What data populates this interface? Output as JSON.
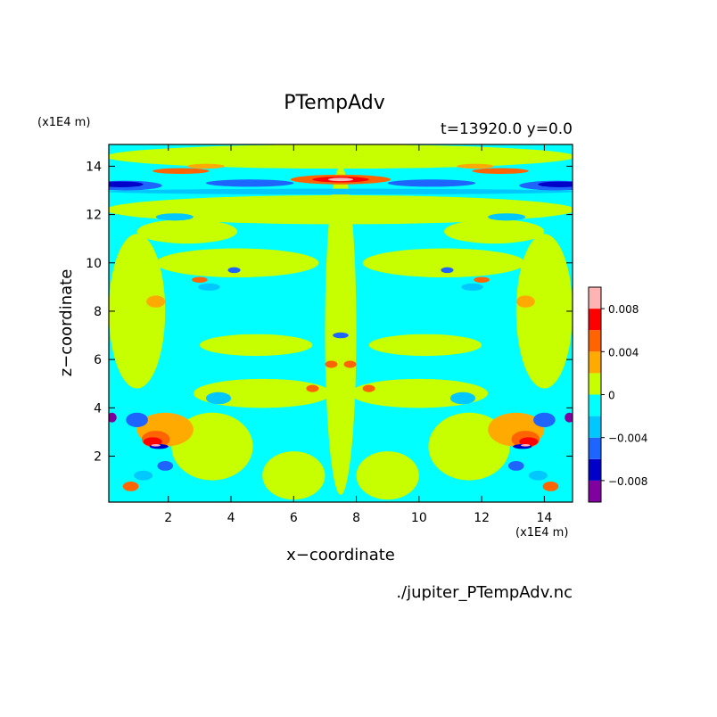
{
  "chart_data": {
    "type": "heatmap",
    "title": "PTempAdv",
    "subtitle": "t=13920.0 y=0.0",
    "xlabel": "x−coordinate",
    "ylabel": "z−coordinate",
    "x_unit": "(x1E4 m)",
    "y_unit": "(x1E4 m)",
    "source_file": "./jupiter_PTempAdv.nc",
    "xlim": [
      0.1,
      14.9
    ],
    "ylim": [
      0.1,
      14.9
    ],
    "x_ticks": [
      2,
      4,
      6,
      8,
      10,
      12,
      14
    ],
    "y_ticks": [
      2,
      4,
      6,
      8,
      10,
      12,
      14
    ],
    "x_tick_labels": [
      "2",
      "4",
      "6",
      "8",
      "10",
      "12",
      "14"
    ],
    "y_tick_labels": [
      "2",
      "4",
      "6",
      "8",
      "10",
      "12",
      "14"
    ],
    "colorbar": {
      "levels": [
        -0.01,
        -0.008,
        -0.006,
        -0.004,
        -0.002,
        0,
        0.002,
        0.004,
        0.006,
        0.008,
        0.01
      ],
      "colors": [
        "#8000a0",
        "#0000c8",
        "#1e64ff",
        "#00c8ff",
        "#00ffff",
        "#c8ff00",
        "#ffaa00",
        "#ff6400",
        "#ff0000",
        "#ffb4b4"
      ],
      "tick_values": [
        -0.008,
        -0.004,
        0,
        0.004,
        0.008
      ],
      "tick_labels": [
        "−0.008",
        "−0.004",
        "0",
        "0.004",
        "0.008"
      ]
    },
    "field": {
      "background_level": "#00ffff",
      "features": [
        {
          "level": 0.001,
          "x": 7.5,
          "z": 7.2,
          "rx": 0.5,
          "rz": 6.8
        },
        {
          "level": 0.001,
          "x": 7.5,
          "z": 14.4,
          "rx": 7.5,
          "rz": 0.5
        },
        {
          "level": 0.001,
          "x": 7.5,
          "z": 12.2,
          "rx": 7.5,
          "rz": 0.6
        },
        {
          "level": 0.001,
          "x": 4.2,
          "z": 10.0,
          "rx": 2.6,
          "rz": 0.6
        },
        {
          "level": 0.001,
          "x": 10.8,
          "z": 10.0,
          "rx": 2.6,
          "rz": 0.6
        },
        {
          "level": 0.001,
          "x": 4.8,
          "z": 6.6,
          "rx": 1.8,
          "rz": 0.45
        },
        {
          "level": 0.001,
          "x": 10.2,
          "z": 6.6,
          "rx": 1.8,
          "rz": 0.45
        },
        {
          "level": 0.001,
          "x": 5.0,
          "z": 4.6,
          "rx": 2.2,
          "rz": 0.6
        },
        {
          "level": 0.001,
          "x": 10.0,
          "z": 4.6,
          "rx": 2.2,
          "rz": 0.6
        },
        {
          "level": 0.001,
          "x": 1.0,
          "z": 8.0,
          "rx": 0.9,
          "rz": 3.2
        },
        {
          "level": 0.001,
          "x": 14.0,
          "z": 8.0,
          "rx": 0.9,
          "rz": 3.2
        },
        {
          "level": 0.001,
          "x": 3.4,
          "z": 2.4,
          "rx": 1.3,
          "rz": 1.4
        },
        {
          "level": 0.001,
          "x": 11.6,
          "z": 2.4,
          "rx": 1.3,
          "rz": 1.4
        },
        {
          "level": 0.001,
          "x": 6.0,
          "z": 1.2,
          "rx": 1.0,
          "rz": 1.0
        },
        {
          "level": 0.001,
          "x": 9.0,
          "z": 1.2,
          "rx": 1.0,
          "rz": 1.0
        },
        {
          "level": 0.001,
          "x": 2.6,
          "z": 11.3,
          "rx": 1.6,
          "rz": 0.5
        },
        {
          "level": 0.001,
          "x": 12.4,
          "z": 11.3,
          "rx": 1.6,
          "rz": 0.5
        },
        {
          "level": -0.003,
          "x": 7.5,
          "z": 12.95,
          "rx": 7.5,
          "rz": 0.12
        },
        {
          "level": -0.005,
          "x": 0.6,
          "z": 13.2,
          "rx": 1.2,
          "rz": 0.2
        },
        {
          "level": -0.005,
          "x": 14.4,
          "z": 13.2,
          "rx": 1.2,
          "rz": 0.2
        },
        {
          "level": -0.007,
          "x": 0.5,
          "z": 13.25,
          "rx": 0.7,
          "rz": 0.12
        },
        {
          "level": -0.007,
          "x": 14.5,
          "z": 13.25,
          "rx": 0.7,
          "rz": 0.12
        },
        {
          "level": -0.005,
          "x": 4.6,
          "z": 13.3,
          "rx": 1.4,
          "rz": 0.15
        },
        {
          "level": -0.005,
          "x": 10.4,
          "z": 13.3,
          "rx": 1.4,
          "rz": 0.15
        },
        {
          "level": 0.005,
          "x": 7.5,
          "z": 13.45,
          "rx": 1.6,
          "rz": 0.2
        },
        {
          "level": 0.007,
          "x": 7.5,
          "z": 13.45,
          "rx": 0.9,
          "rz": 0.12
        },
        {
          "level": 0.009,
          "x": 7.5,
          "z": 13.45,
          "rx": 0.4,
          "rz": 0.07
        },
        {
          "level": 0.005,
          "x": 2.4,
          "z": 13.8,
          "rx": 0.9,
          "rz": 0.12
        },
        {
          "level": 0.005,
          "x": 12.6,
          "z": 13.8,
          "rx": 0.9,
          "rz": 0.12
        },
        {
          "level": 0.003,
          "x": 3.2,
          "z": 14.0,
          "rx": 0.6,
          "rz": 0.1
        },
        {
          "level": 0.003,
          "x": 11.8,
          "z": 14.0,
          "rx": 0.6,
          "rz": 0.1
        },
        {
          "level": -0.003,
          "x": 3.3,
          "z": 9.0,
          "rx": 0.35,
          "rz": 0.15
        },
        {
          "level": -0.003,
          "x": 11.7,
          "z": 9.0,
          "rx": 0.35,
          "rz": 0.15
        },
        {
          "level": 0.005,
          "x": 3.0,
          "z": 9.3,
          "rx": 0.25,
          "rz": 0.12
        },
        {
          "level": 0.005,
          "x": 12.0,
          "z": 9.3,
          "rx": 0.25,
          "rz": 0.12
        },
        {
          "level": 0.003,
          "x": 1.6,
          "z": 8.4,
          "rx": 0.3,
          "rz": 0.25
        },
        {
          "level": 0.003,
          "x": 13.4,
          "z": 8.4,
          "rx": 0.3,
          "rz": 0.25
        },
        {
          "level": -0.005,
          "x": 4.1,
          "z": 9.7,
          "rx": 0.2,
          "rz": 0.12
        },
        {
          "level": -0.005,
          "x": 10.9,
          "z": 9.7,
          "rx": 0.2,
          "rz": 0.12
        },
        {
          "level": 0.005,
          "x": 7.2,
          "z": 5.8,
          "rx": 0.2,
          "rz": 0.15
        },
        {
          "level": 0.005,
          "x": 7.8,
          "z": 5.8,
          "rx": 0.2,
          "rz": 0.15
        },
        {
          "level": -0.005,
          "x": 7.5,
          "z": 7.0,
          "rx": 0.25,
          "rz": 0.12
        },
        {
          "level": 0.005,
          "x": 6.6,
          "z": 4.8,
          "rx": 0.2,
          "rz": 0.15
        },
        {
          "level": 0.005,
          "x": 8.4,
          "z": 4.8,
          "rx": 0.2,
          "rz": 0.15
        },
        {
          "level": -0.003,
          "x": 3.6,
          "z": 4.4,
          "rx": 0.4,
          "rz": 0.25
        },
        {
          "level": -0.003,
          "x": 11.4,
          "z": 4.4,
          "rx": 0.4,
          "rz": 0.25
        },
        {
          "level": 0.003,
          "x": 1.9,
          "z": 3.1,
          "rx": 0.9,
          "rz": 0.7
        },
        {
          "level": 0.003,
          "x": 13.1,
          "z": 3.1,
          "rx": 0.9,
          "rz": 0.7
        },
        {
          "level": 0.005,
          "x": 1.6,
          "z": 2.7,
          "rx": 0.45,
          "rz": 0.35
        },
        {
          "level": 0.005,
          "x": 13.4,
          "z": 2.7,
          "rx": 0.45,
          "rz": 0.35
        },
        {
          "level": 0.007,
          "x": 1.5,
          "z": 2.6,
          "rx": 0.3,
          "rz": 0.18
        },
        {
          "level": 0.007,
          "x": 13.5,
          "z": 2.6,
          "rx": 0.3,
          "rz": 0.18
        },
        {
          "level": -0.007,
          "x": 1.7,
          "z": 2.4,
          "rx": 0.3,
          "rz": 0.1
        },
        {
          "level": -0.007,
          "x": 13.3,
          "z": 2.4,
          "rx": 0.3,
          "rz": 0.1
        },
        {
          "level": 0.009,
          "x": 1.6,
          "z": 2.45,
          "rx": 0.15,
          "rz": 0.05
        },
        {
          "level": 0.009,
          "x": 13.4,
          "z": 2.45,
          "rx": 0.15,
          "rz": 0.05
        },
        {
          "level": -0.005,
          "x": 1.0,
          "z": 3.5,
          "rx": 0.35,
          "rz": 0.3
        },
        {
          "level": -0.005,
          "x": 14.0,
          "z": 3.5,
          "rx": 0.35,
          "rz": 0.3
        },
        {
          "level": -0.009,
          "x": 0.2,
          "z": 3.6,
          "rx": 0.15,
          "rz": 0.2
        },
        {
          "level": -0.009,
          "x": 14.8,
          "z": 3.6,
          "rx": 0.15,
          "rz": 0.2
        },
        {
          "level": -0.005,
          "x": 1.9,
          "z": 1.6,
          "rx": 0.25,
          "rz": 0.2
        },
        {
          "level": -0.005,
          "x": 13.1,
          "z": 1.6,
          "rx": 0.25,
          "rz": 0.2
        },
        {
          "level": 0.005,
          "x": 0.8,
          "z": 0.75,
          "rx": 0.25,
          "rz": 0.2
        },
        {
          "level": 0.005,
          "x": 14.2,
          "z": 0.75,
          "rx": 0.25,
          "rz": 0.2
        },
        {
          "level": -0.003,
          "x": 1.2,
          "z": 1.2,
          "rx": 0.3,
          "rz": 0.2
        },
        {
          "level": -0.003,
          "x": 13.8,
          "z": 1.2,
          "rx": 0.3,
          "rz": 0.2
        },
        {
          "level": -0.003,
          "x": 2.2,
          "z": 11.9,
          "rx": 0.6,
          "rz": 0.15
        },
        {
          "level": -0.003,
          "x": 12.8,
          "z": 11.9,
          "rx": 0.6,
          "rz": 0.15
        }
      ]
    }
  }
}
